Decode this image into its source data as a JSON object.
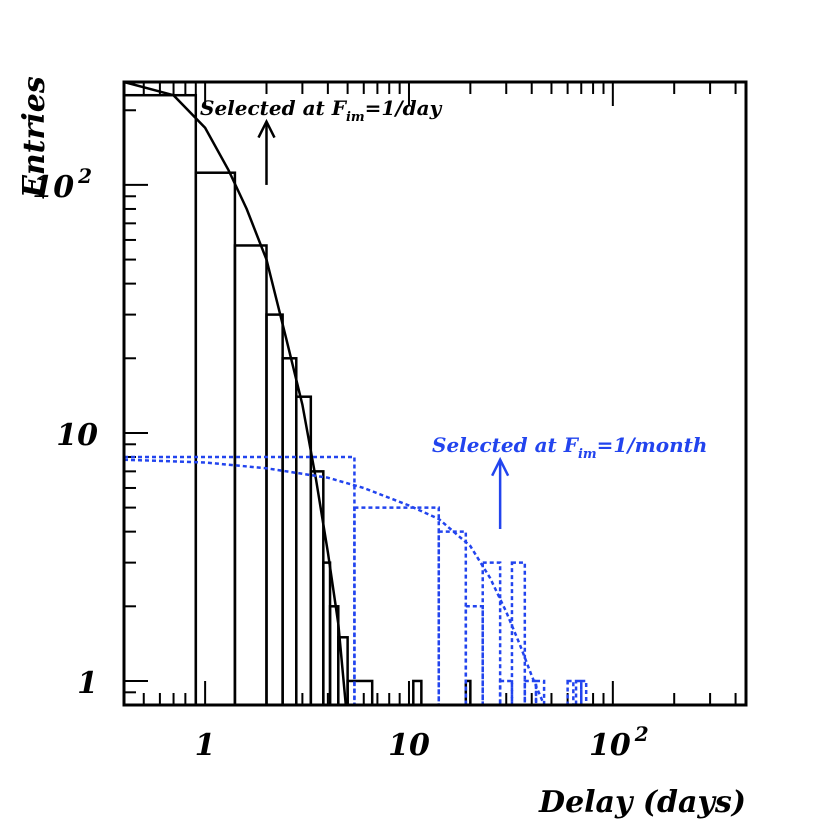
{
  "chart_data": {
    "type": "histogram",
    "title": "",
    "xlabel": "Delay (days)",
    "ylabel": "Entries",
    "xscale": "log",
    "yscale": "log",
    "xlim": [
      0.4,
      450
    ],
    "ylim": [
      0.8,
      260
    ],
    "x_tick_labels": [
      {
        "value": 1,
        "base": "1",
        "exp": ""
      },
      {
        "value": 10,
        "base": "10",
        "exp": ""
      },
      {
        "value": 100,
        "base": "10",
        "exp": "2"
      }
    ],
    "y_tick_labels": [
      {
        "value": 1,
        "base": "1",
        "exp": ""
      },
      {
        "value": 10,
        "base": "10",
        "exp": ""
      },
      {
        "value": 100,
        "base": "10",
        "exp": "2"
      }
    ],
    "series": [
      {
        "color": "#000000",
        "style": "solid",
        "histogram": [
          {
            "x0": 0.4,
            "x1": 0.9,
            "y": 230
          },
          {
            "x0": 0.9,
            "x1": 1.4,
            "y": 112
          },
          {
            "x0": 1.4,
            "x1": 2.0,
            "y": 57
          },
          {
            "x0": 2.0,
            "x1": 2.4,
            "y": 30
          },
          {
            "x0": 2.4,
            "x1": 2.8,
            "y": 20
          },
          {
            "x0": 2.8,
            "x1": 3.3,
            "y": 14
          },
          {
            "x0": 3.3,
            "x1": 3.8,
            "y": 7
          },
          {
            "x0": 3.8,
            "x1": 4.1,
            "y": 3
          },
          {
            "x0": 4.1,
            "x1": 4.5,
            "y": 2
          },
          {
            "x0": 4.5,
            "x1": 5.0,
            "y": 1.5
          },
          {
            "x0": 5.0,
            "x1": 6.6,
            "y": 1
          },
          {
            "x0": 10.5,
            "x1": 11.5,
            "y": 1
          },
          {
            "x0": 19.0,
            "x1": 20.0,
            "y": 1
          }
        ],
        "fit": [
          [
            0.4,
            300
          ],
          [
            0.7,
            230
          ],
          [
            1.0,
            170
          ],
          [
            1.3,
            115
          ],
          [
            1.6,
            80
          ],
          [
            2.0,
            50
          ],
          [
            2.5,
            24
          ],
          [
            3.0,
            13
          ],
          [
            3.5,
            6.5
          ],
          [
            4.0,
            3.3
          ],
          [
            4.5,
            1.7
          ],
          [
            4.9,
            0.8
          ]
        ]
      },
      {
        "color": "#2244ee",
        "style": "dotted",
        "histogram": [
          {
            "x0": 0.4,
            "x1": 5.4,
            "y": 8
          },
          {
            "x0": 5.4,
            "x1": 14.0,
            "y": 5
          },
          {
            "x0": 14.0,
            "x1": 19.0,
            "y": 4
          },
          {
            "x0": 19.0,
            "x1": 23.0,
            "y": 2
          },
          {
            "x0": 23.0,
            "x1": 28.0,
            "y": 3
          },
          {
            "x0": 28.0,
            "x1": 32.0,
            "y": 1
          },
          {
            "x0": 32.0,
            "x1": 37.0,
            "y": 3
          },
          {
            "x0": 37.0,
            "x1": 42.0,
            "y": 1
          },
          {
            "x0": 42.0,
            "x1": 46.0,
            "y": 1
          },
          {
            "x0": 60.0,
            "x1": 64.0,
            "y": 1
          },
          {
            "x0": 66.0,
            "x1": 70.0,
            "y": 1
          },
          {
            "x0": 70.0,
            "x1": 74.0,
            "y": 1
          }
        ],
        "fit": [
          [
            0.4,
            7.8
          ],
          [
            1,
            7.6
          ],
          [
            2,
            7.2
          ],
          [
            4,
            6.6
          ],
          [
            6,
            6.0
          ],
          [
            10,
            5.1
          ],
          [
            14,
            4.5
          ],
          [
            20,
            3.5
          ],
          [
            25,
            2.6
          ],
          [
            30,
            1.9
          ],
          [
            35,
            1.4
          ],
          [
            40,
            1.05
          ],
          [
            46,
            0.8
          ]
        ]
      }
    ],
    "annotations": [
      {
        "text": "Selected at F",
        "sub": "im",
        "rest": "=1/day",
        "color": "#000000",
        "arrow_x": 2.0,
        "arrow_y0": 100,
        "arrow_y1": 180
      },
      {
        "text": "Selected at F",
        "sub": "im",
        "rest": "=1/month",
        "color": "#2244ee",
        "arrow_x": 28.0,
        "arrow_y0": 4.1,
        "arrow_y1": 7.8
      }
    ]
  }
}
